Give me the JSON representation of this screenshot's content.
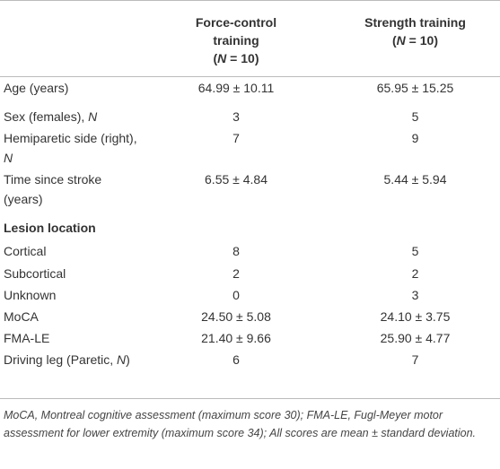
{
  "table": {
    "columns": [
      {
        "lines": [
          "Force-control",
          "training"
        ],
        "n": [
          "(",
          "N",
          " = 10)"
        ]
      },
      {
        "lines": [
          "Strength training"
        ],
        "n": [
          "(",
          "N",
          " = 10)"
        ]
      }
    ],
    "rows": [
      {
        "label": [
          "Age (years)"
        ],
        "values": [
          "64.99 ± 10.11",
          "65.95 ± 15.25"
        ]
      },
      {
        "label": [
          "Sex (females), ",
          "N"
        ],
        "values": [
          "3",
          "5"
        ]
      },
      {
        "label": [
          "Hemiparetic side (right), ",
          "N"
        ],
        "values": [
          "7",
          "9"
        ]
      },
      {
        "label": [
          "Time since stroke (years)"
        ],
        "values": [
          "6.55 ± 4.84",
          "5.44 ± 5.94"
        ]
      },
      {
        "section": "Lesion location"
      },
      {
        "label": [
          "Cortical"
        ],
        "values": [
          "8",
          "5"
        ]
      },
      {
        "label": [
          "Subcortical"
        ],
        "values": [
          "2",
          "2"
        ]
      },
      {
        "label": [
          "Unknown"
        ],
        "values": [
          "0",
          "3"
        ]
      },
      {
        "label": [
          "MoCA"
        ],
        "values": [
          "24.50 ± 5.08",
          "24.10 ± 3.75"
        ]
      },
      {
        "label": [
          "FMA-LE"
        ],
        "values": [
          "21.40 ± 9.66",
          "25.90 ± 4.77"
        ]
      },
      {
        "label": [
          "Driving leg (Paretic, ",
          "N",
          ")"
        ],
        "values": [
          "6",
          "7"
        ]
      }
    ]
  },
  "footnote": "MoCA, Montreal cognitive assessment (maximum score 30); FMA-LE, Fugl-Meyer motor assessment for lower extremity (maximum score 34); All scores are mean ± standard deviation."
}
